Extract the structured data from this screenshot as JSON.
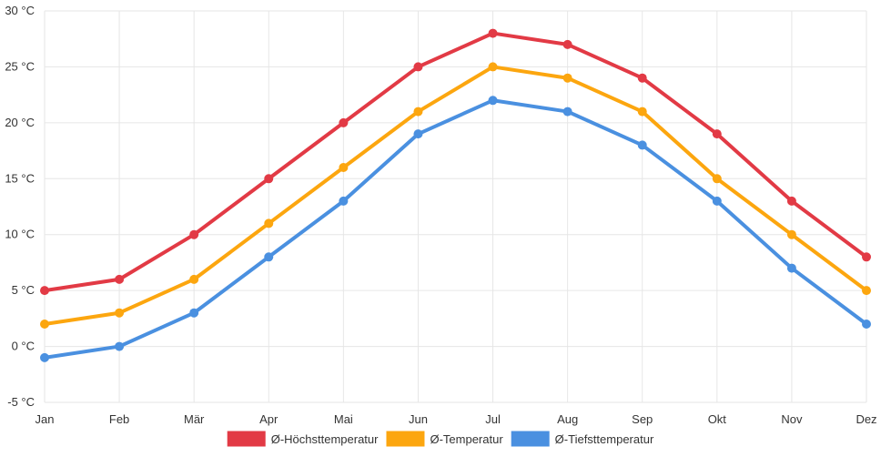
{
  "chart_data": {
    "type": "line",
    "categories": [
      "Jan",
      "Feb",
      "Mär",
      "Apr",
      "Mai",
      "Jun",
      "Jul",
      "Aug",
      "Sep",
      "Okt",
      "Nov",
      "Dez"
    ],
    "series": [
      {
        "name": "Ø-Höchsttemperatur",
        "color": "#e23a45",
        "values": [
          5,
          6,
          10,
          15,
          20,
          25,
          28,
          27,
          24,
          19,
          13,
          8
        ]
      },
      {
        "name": "Ø-Temperatur",
        "color": "#fca60f",
        "values": [
          2,
          3,
          6,
          11,
          16,
          21,
          25,
          24,
          21,
          15,
          10,
          5
        ]
      },
      {
        "name": "Ø-Tiefsttemperatur",
        "color": "#4a90e0",
        "values": [
          -1,
          0,
          3,
          8,
          13,
          19,
          22,
          21,
          18,
          13,
          7,
          2
        ]
      }
    ],
    "y_ticks": [
      "-5 °C",
      "0 °C",
      "5 °C",
      "10 °C",
      "15 °C",
      "20 °C",
      "25 °C",
      "30 °C"
    ],
    "ylim": [
      -5,
      30
    ],
    "y_step": 5,
    "grid": true,
    "legend_position": "bottom-center",
    "title": "",
    "xlabel": "",
    "ylabel": ""
  }
}
